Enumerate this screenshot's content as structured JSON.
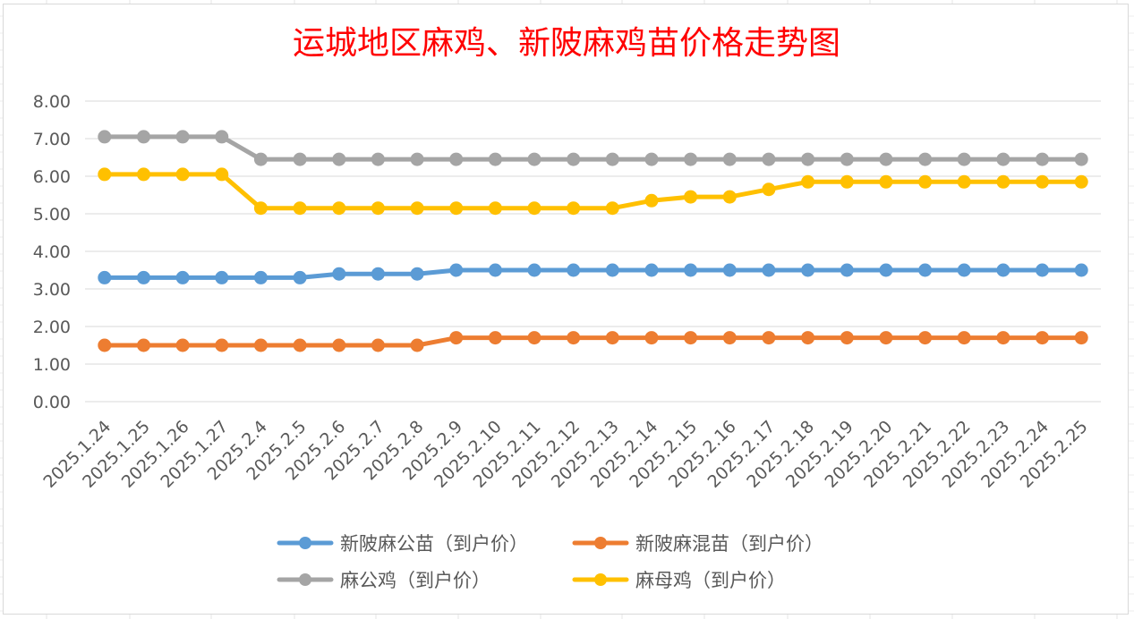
{
  "chart_data": {
    "type": "line",
    "title": "运城地区麻鸡、新陂麻鸡苗价格走势图",
    "xlabel": "",
    "ylabel": "",
    "ylim": [
      0,
      8
    ],
    "ytick_step": 1,
    "ytick_labels": [
      "0.00",
      "1.00",
      "2.00",
      "3.00",
      "4.00",
      "5.00",
      "6.00",
      "7.00",
      "8.00"
    ],
    "grid": true,
    "legend_position": "bottom",
    "categories": [
      "2025.1.24",
      "2025.1.25",
      "2025.1.26",
      "2025.1.27",
      "2025.2.4",
      "2025.2.5",
      "2025.2.6",
      "2025.2.7",
      "2025.2.8",
      "2025.2.9",
      "2025.2.10",
      "2025.2.11",
      "2025.2.12",
      "2025.2.13",
      "2025.2.14",
      "2025.2.15",
      "2025.2.16",
      "2025.2.17",
      "2025.2.18",
      "2025.2.19",
      "2025.2.20",
      "2025.2.21",
      "2025.2.22",
      "2025.2.23",
      "2025.2.24",
      "2025.2.25"
    ],
    "series": [
      {
        "name": "新陂麻公苗（到户价）",
        "color": "#5b9bd5",
        "values": [
          3.3,
          3.3,
          3.3,
          3.3,
          3.3,
          3.3,
          3.4,
          3.4,
          3.4,
          3.5,
          3.5,
          3.5,
          3.5,
          3.5,
          3.5,
          3.5,
          3.5,
          3.5,
          3.5,
          3.5,
          3.5,
          3.5,
          3.5,
          3.5,
          3.5,
          3.5
        ]
      },
      {
        "name": "新陂麻混苗（到户价）",
        "color": "#ed7d31",
        "values": [
          1.5,
          1.5,
          1.5,
          1.5,
          1.5,
          1.5,
          1.5,
          1.5,
          1.5,
          1.7,
          1.7,
          1.7,
          1.7,
          1.7,
          1.7,
          1.7,
          1.7,
          1.7,
          1.7,
          1.7,
          1.7,
          1.7,
          1.7,
          1.7,
          1.7,
          1.7
        ]
      },
      {
        "name": "麻公鸡（到户价）",
        "color": "#a5a5a5",
        "values": [
          7.05,
          7.05,
          7.05,
          7.05,
          6.45,
          6.45,
          6.45,
          6.45,
          6.45,
          6.45,
          6.45,
          6.45,
          6.45,
          6.45,
          6.45,
          6.45,
          6.45,
          6.45,
          6.45,
          6.45,
          6.45,
          6.45,
          6.45,
          6.45,
          6.45,
          6.45
        ]
      },
      {
        "name": "麻母鸡（到户价）",
        "color": "#ffc000",
        "values": [
          6.05,
          6.05,
          6.05,
          6.05,
          5.15,
          5.15,
          5.15,
          5.15,
          5.15,
          5.15,
          5.15,
          5.15,
          5.15,
          5.15,
          5.35,
          5.45,
          5.45,
          5.65,
          5.85,
          5.85,
          5.85,
          5.85,
          5.85,
          5.85,
          5.85,
          5.85
        ]
      }
    ]
  }
}
